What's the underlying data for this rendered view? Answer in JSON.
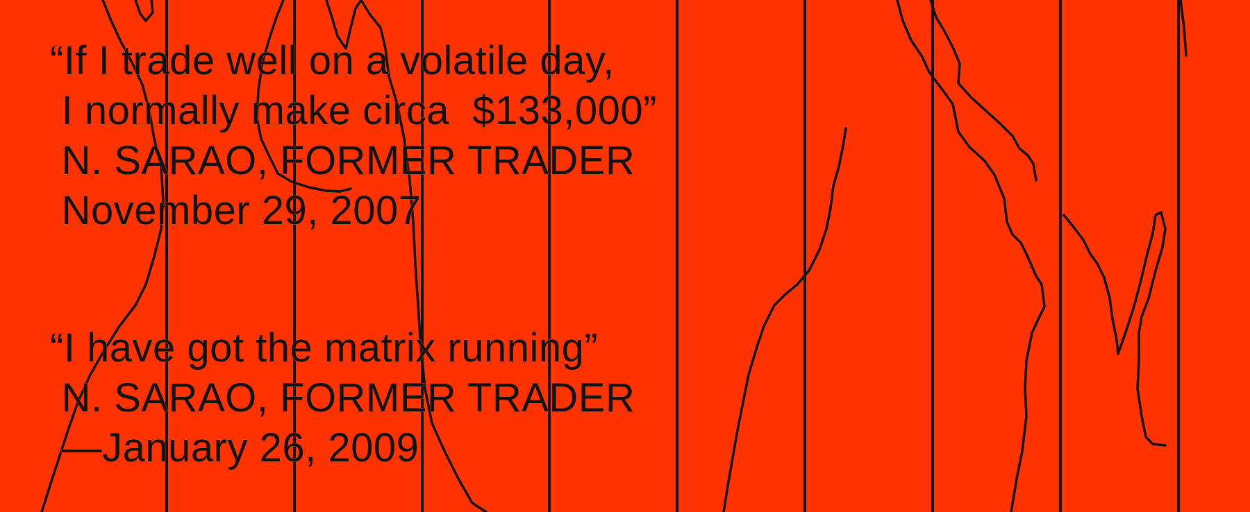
{
  "background_color": "#ff3300",
  "ink_color": "#111111",
  "quotes": [
    {
      "quote_line_1": "“If I trade well on a volatile day,",
      "quote_line_2": " I normally make circa  $133,000”",
      "attribution": " N. SARAO, FORMER TRADER",
      "date": " November 29, 2007"
    },
    {
      "quote_line_1": "“I have got the matrix running”",
      "attribution": " N. SARAO, FORMER TRADER",
      "date": " —January 26, 2009"
    }
  ]
}
